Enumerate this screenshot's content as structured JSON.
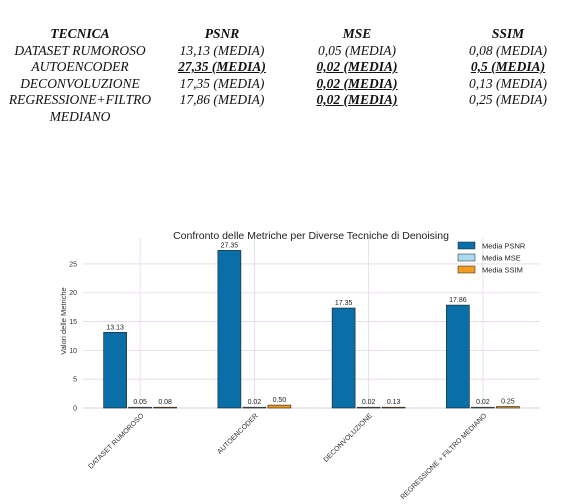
{
  "table": {
    "headers": [
      "TECNICA",
      "PSNR",
      "MSE",
      "SSIM"
    ],
    "rows": [
      [
        "DATASET RUMOROSO",
        "13,13 (MEDIA)",
        "0,05 (MEDIA)",
        "0,08 (MEDIA)"
      ],
      [
        "AUTOENCODER",
        "27,35 (MEDIA)",
        "0,02 (MEDIA)",
        "0,5 (MEDIA)"
      ],
      [
        "DECONVOLUZIONE",
        "17,35 (MEDIA)",
        "0,02 (MEDIA)",
        "0,13 (MEDIA)"
      ],
      [
        "REGRESSIONE+FILTRO MEDIANO",
        "17,86 (MEDIA)",
        "0,02 (MEDIA)",
        "0,25 (MEDIA)"
      ]
    ],
    "highlighted": [
      [
        1,
        1
      ],
      [
        1,
        2
      ],
      [
        1,
        3
      ],
      [
        2,
        2
      ],
      [
        3,
        2
      ]
    ]
  },
  "chart_data": {
    "type": "bar",
    "title": "Confronto delle Metriche per Diverse Tecniche di Denoising",
    "xlabel": "",
    "ylabel": "Valori delle Metriche",
    "categories": [
      "DATASET RUMOROSO",
      "AUTOENCODER",
      "DECONVOLUZIONE",
      "REGRESSIONE + FILTRO MEDIANO"
    ],
    "series": [
      {
        "name": "Media PSNR",
        "values": [
          13.13,
          27.35,
          17.35,
          17.86
        ],
        "labels": [
          "13.13",
          "27.35",
          "17.35",
          "17.86"
        ],
        "color": "#0a6fa8"
      },
      {
        "name": "Media MSE",
        "values": [
          0.05,
          0.02,
          0.02,
          0.02
        ],
        "labels": [
          "0.05",
          "0.02",
          "0.02",
          "0.02"
        ],
        "color": "#a9dcef"
      },
      {
        "name": "Media SSIM",
        "values": [
          0.08,
          0.5,
          0.13,
          0.25
        ],
        "labels": [
          "0.08",
          "0.50",
          "0.13",
          "0.25"
        ],
        "color": "#f39c24"
      }
    ],
    "yticks": [
      "0",
      "5",
      "10",
      "15",
      "20",
      "25"
    ],
    "ylim": [
      0,
      29.5
    ],
    "grid": true,
    "legend_position": "top-right"
  }
}
